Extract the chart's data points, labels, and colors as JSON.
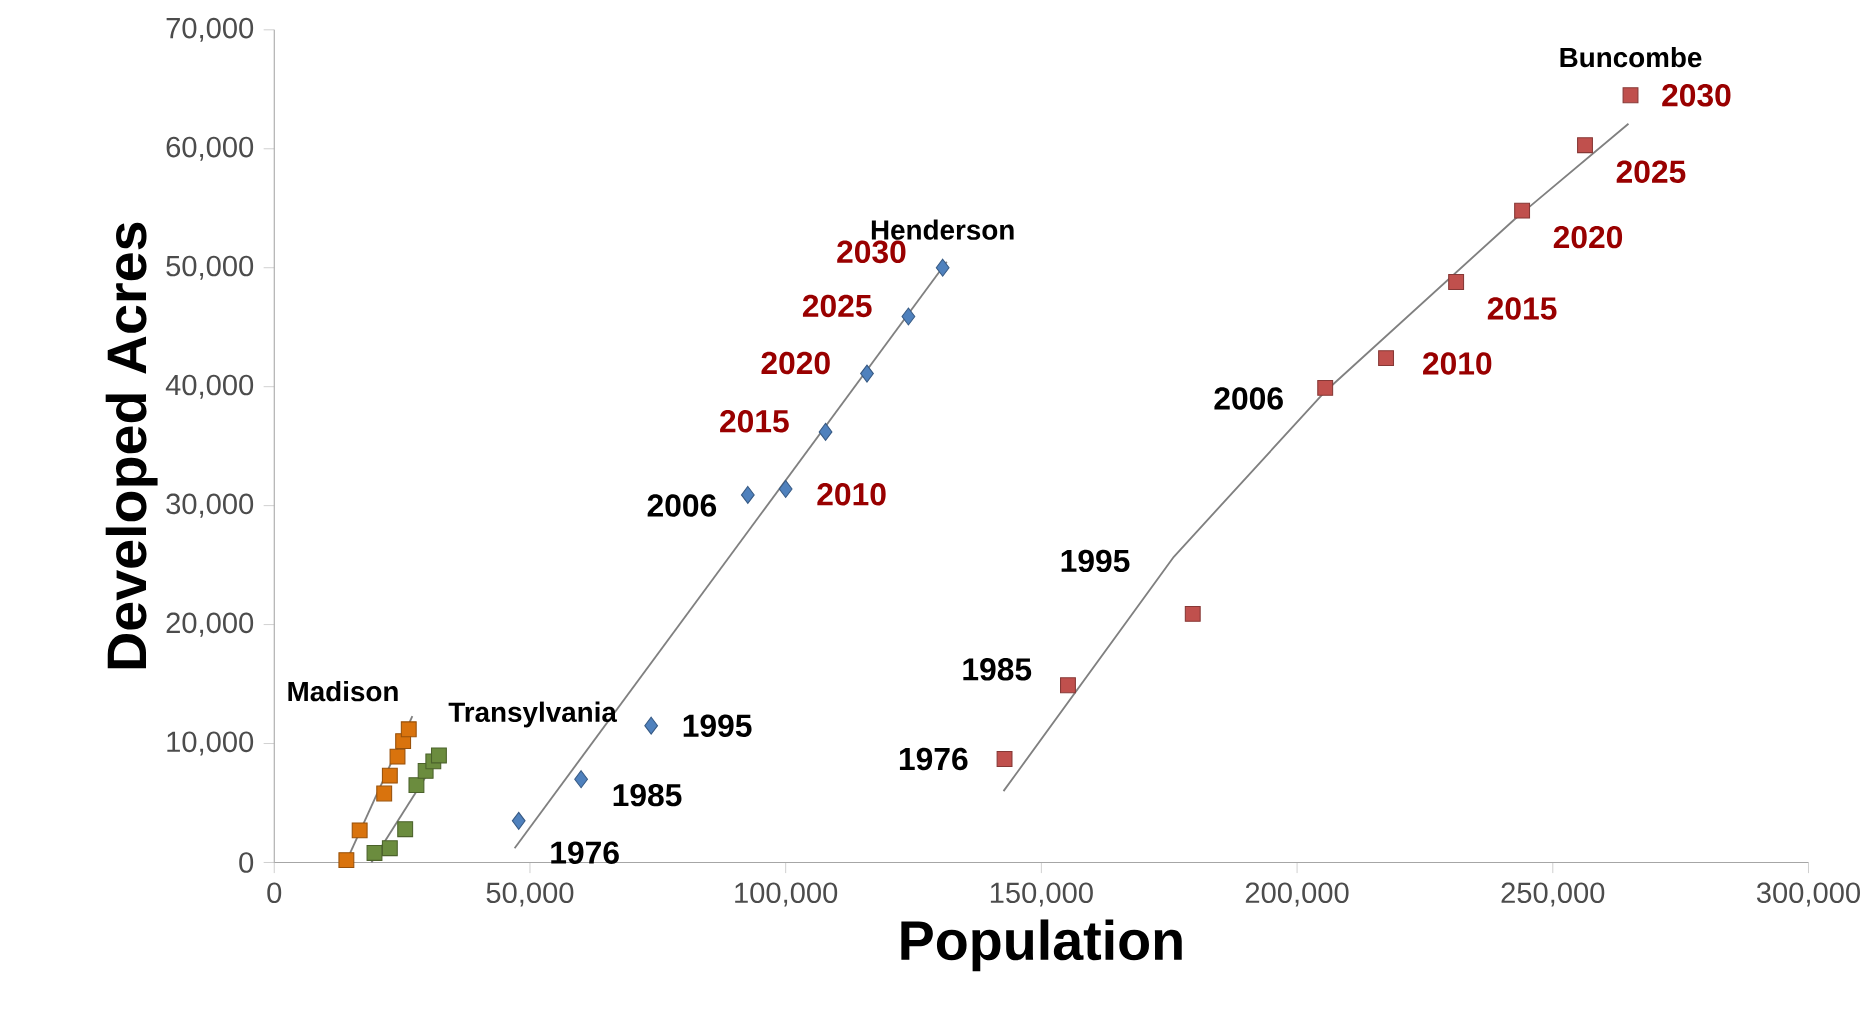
{
  "chart_data": {
    "type": "scatter",
    "xlabel": "Population",
    "ylabel": "Developed Acres",
    "xlim": [
      0,
      300000
    ],
    "ylim": [
      0,
      70000
    ],
    "xticks": [
      0,
      {
        "value": 50000,
        "label": "50,000"
      },
      {
        "value": 100000,
        "label": "100,000"
      },
      {
        "value": 150000,
        "label": "150,000"
      },
      {
        "value": 200000,
        "label": "200,000"
      },
      {
        "value": 250000,
        "label": "250,000"
      },
      {
        "value": 300000,
        "label": "300,000"
      }
    ],
    "yticks": [
      0,
      {
        "value": 10000,
        "label": "10,000"
      },
      {
        "value": 20000,
        "label": "20,000"
      },
      {
        "value": 30000,
        "label": "30,000"
      },
      {
        "value": 40000,
        "label": "40,000"
      },
      {
        "value": 50000,
        "label": "50,000"
      },
      {
        "value": 60000,
        "label": "60,000"
      },
      {
        "value": 70000,
        "label": "70,000"
      }
    ],
    "series": [
      {
        "name": "Madison",
        "color": "#d9730d",
        "marker": "square",
        "x": [
          14100,
          16700,
          21500,
          22600,
          24100,
          25200,
          26300
        ],
        "values": [
          200,
          2700,
          5800,
          7300,
          8900,
          10200,
          11200
        ]
      },
      {
        "name": "Transylvania",
        "color": "#6b8c3e",
        "marker": "square",
        "x": [
          19600,
          22600,
          25600,
          27800,
          29600,
          31100,
          32200
        ],
        "values": [
          800,
          1200,
          2800,
          6500,
          7700,
          8500,
          9000
        ]
      },
      {
        "name": "Henderson",
        "color": "#4f81bd",
        "marker": "diamond",
        "x": [
          47800,
          60000,
          73700,
          92600,
          100000,
          107800,
          115900,
          124000,
          130700
        ],
        "values": [
          3500,
          7000,
          11500,
          30900,
          31400,
          36200,
          41100,
          45900,
          50000
        ]
      },
      {
        "name": "Buncombe",
        "color": "#c0504d",
        "marker": "square",
        "x": [
          142800,
          155200,
          179600,
          205500,
          217400,
          231100,
          244000,
          256300,
          265200
        ],
        "values": [
          8700,
          14900,
          20900,
          39900,
          42400,
          48800,
          54800,
          60300,
          64500
        ]
      },
      {
        "type": "line",
        "color": "#808080",
        "x": [
          14000,
          27000
        ],
        "values": [
          0,
          12300
        ]
      },
      {
        "type": "line",
        "color": "#808080",
        "x": [
          19000,
          33000
        ],
        "values": [
          0,
          9500
        ]
      },
      {
        "type": "line",
        "color": "#808080",
        "x": [
          47000,
          131500
        ],
        "values": [
          1200,
          50500
        ]
      },
      {
        "type": "line",
        "color": "#808080",
        "x": [
          142600,
          175900,
          205500,
          242600,
          264800
        ],
        "values": [
          6000,
          25700,
          39600,
          54100,
          62100
        ]
      }
    ],
    "annotations": [
      {
        "text": "1976",
        "x": 47800,
        "y": 3500
      },
      {
        "text": "1985",
        "x": 60000,
        "y": 7000
      },
      {
        "text": "1995",
        "x": 73700,
        "y": 11500
      },
      {
        "text": "2006",
        "x": 92600,
        "y": 30900
      },
      {
        "text": "2010",
        "x": 100000,
        "y": 31400
      },
      {
        "text": "2015",
        "x": 107800,
        "y": 36200
      },
      {
        "text": "2020",
        "x": 115900,
        "y": 41100
      },
      {
        "text": "2025",
        "x": 124000,
        "y": 45900
      },
      {
        "text": "2030",
        "x": 130700,
        "y": 50000
      },
      {
        "text": "1976",
        "x": 142800,
        "y": 8700
      },
      {
        "text": "1985",
        "x": 155200,
        "y": 14900
      },
      {
        "text": "1995",
        "x": 179600,
        "y": 20900
      },
      {
        "text": "2006",
        "x": 205500,
        "y": 39900
      },
      {
        "text": "2010",
        "x": 217400,
        "y": 42400
      },
      {
        "text": "2015",
        "x": 231100,
        "y": 48800
      },
      {
        "text": "2020",
        "x": 244000,
        "y": 54800
      },
      {
        "text": "2025",
        "x": 256300,
        "y": 60300
      },
      {
        "text": "2030",
        "x": 265200,
        "y": 64500
      }
    ]
  }
}
